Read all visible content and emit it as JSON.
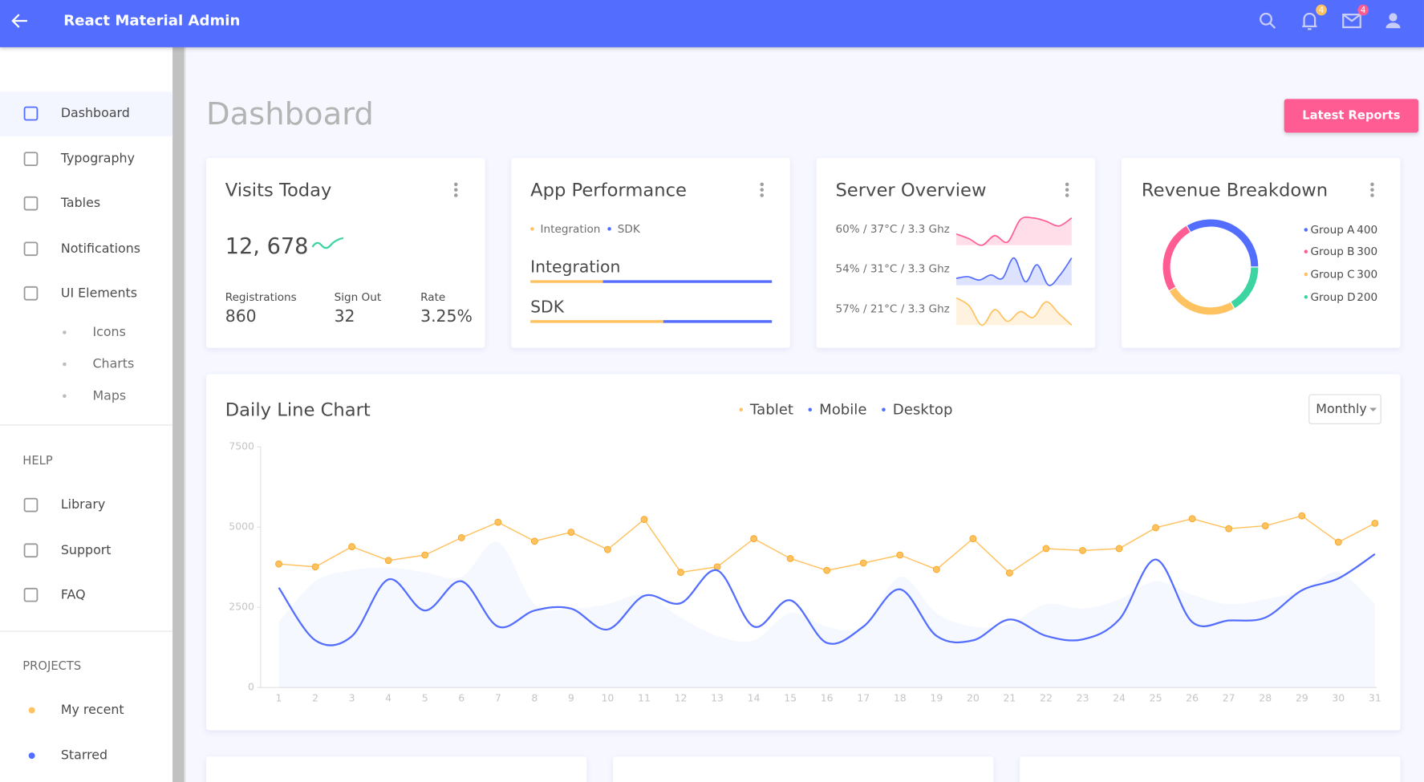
{
  "header": {
    "title": "React Material Admin",
    "notifications_badge": 4,
    "messages_badge": 4
  },
  "sidebar": {
    "items": [
      "Dashboard",
      "Typography",
      "Tables",
      "Notifications",
      "UI Elements"
    ],
    "sub_items": [
      "Icons",
      "Charts",
      "Maps"
    ],
    "help_title": "HELP",
    "help_items": [
      "Library",
      "Support",
      "FAQ"
    ],
    "projects_title": "PROJECTS",
    "projects": [
      "My recent",
      "Starred"
    ]
  },
  "page": {
    "title": "Dashboard",
    "button": "Latest Reports"
  },
  "visits": {
    "title": "Visits Today",
    "value": "12, 678",
    "stats": [
      {
        "label": "Registrations",
        "value": 860
      },
      {
        "label": "Sign Out",
        "value": 32
      },
      {
        "label": "Rate",
        "value": "3.25%"
      }
    ]
  },
  "app_performance": {
    "title": "App Performance",
    "legend": [
      {
        "name": "Integration",
        "color": "#ffc260"
      },
      {
        "name": "SDK",
        "color": "#536dfe"
      }
    ],
    "bars": [
      {
        "label": "Integration",
        "value": 30
      },
      {
        "label": "SDK",
        "value": 55
      }
    ]
  },
  "server": {
    "title": "Server Overview",
    "rows": [
      {
        "label": "60% / 37°C / 3.3 Ghz",
        "color": "#ff5c93",
        "values": [
          45,
          30,
          10,
          40,
          20,
          90,
          95,
          85,
          70,
          95
        ]
      },
      {
        "label": "54% / 31°C / 3.3 Ghz",
        "color": "#536dfe",
        "values": [
          30,
          35,
          25,
          40,
          30,
          90,
          20,
          70,
          10,
          40,
          90
        ]
      },
      {
        "label": "57% / 21°C / 3.3 Ghz",
        "color": "#ffc260",
        "values": [
          90,
          70,
          20,
          60,
          30,
          55,
          40,
          80,
          50,
          20
        ]
      }
    ]
  },
  "chart_data": [
    {
      "type": "line",
      "title": "Daily Line Chart",
      "select": "Monthly",
      "categories": [
        "1",
        "2",
        "3",
        "4",
        "5",
        "6",
        "7",
        "8",
        "9",
        "10",
        "11",
        "12",
        "13",
        "14",
        "15",
        "16",
        "17",
        "18",
        "19",
        "20",
        "21",
        "22",
        "23",
        "24",
        "25",
        "26",
        "27",
        "28",
        "29",
        "30",
        "31"
      ],
      "series": [
        {
          "name": "Tablet",
          "color": "#ffc260",
          "style": "dots",
          "values": [
            3850,
            3760,
            4390,
            3960,
            4130,
            4670,
            5150,
            4560,
            4840,
            4300,
            5240,
            3590,
            3760,
            4640,
            4020,
            3650,
            3880,
            4130,
            3680,
            4640,
            3570,
            4330,
            4270,
            4330,
            4980,
            5260,
            4950,
            5040,
            5350,
            4530,
            5120
          ]
        },
        {
          "name": "Mobile",
          "color": "#536dfe",
          "style": "curve",
          "values": [
            3110,
            1470,
            1600,
            3370,
            2400,
            3310,
            1900,
            2400,
            2460,
            1810,
            2860,
            2630,
            3650,
            1900,
            2720,
            1390,
            1900,
            3060,
            1610,
            1470,
            2120,
            1610,
            1500,
            2120,
            3990,
            2040,
            2090,
            2180,
            3030,
            3400,
            4160
          ]
        },
        {
          "name": "Desktop",
          "color": "#536dfe",
          "style": "area",
          "values": [
            2040,
            3310,
            3650,
            3740,
            3590,
            3450,
            4530,
            2600,
            2460,
            2600,
            2890,
            2180,
            1610,
            1470,
            2320,
            1900,
            1900,
            3450,
            2320,
            1900,
            1980,
            2600,
            2460,
            2750,
            3310,
            2890,
            2600,
            2750,
            3030,
            3590,
            2600
          ]
        }
      ],
      "ylim": [
        0,
        7500
      ],
      "yticks": [
        0,
        2500,
        5000,
        7500
      ]
    },
    {
      "type": "pie",
      "title": "Revenue Breakdown",
      "categories": [
        "Group A",
        "Group B",
        "Group C",
        "Group D"
      ],
      "values": [
        400,
        300,
        300,
        200
      ],
      "colors": [
        "#536dfe",
        "#ff5c93",
        "#ffc260",
        "#3cd4a0"
      ]
    }
  ]
}
